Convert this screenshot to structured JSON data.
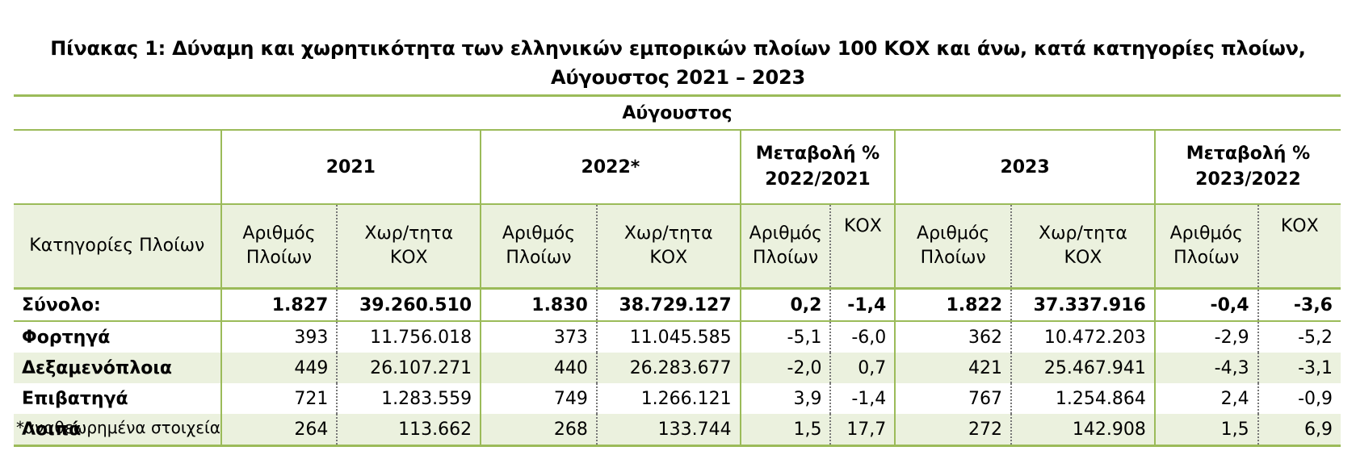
{
  "title_line1": "Πίνακας 1: Δύναμη και χωρητικότητα των ελληνικών εμπορικών πλοίων 100 ΚΟΧ και άνω, κατά κατηγορίες πλοίων,",
  "title_line2": "Αύγουστος 2021 – 2023",
  "month_header": "Αύγουστος",
  "years": {
    "y2021": "2021",
    "y2022": "2022*",
    "change_2022": "Μεταβολή % 2022/2021",
    "y2023": "2023",
    "change_2023": "Μεταβολή % 2023/2022"
  },
  "subheaders": {
    "category": "Κατηγορίες Πλοίων",
    "count": "Αριθμός Πλοίων",
    "capacity": "Χωρ/τητα ΚΟΧ",
    "kox": "ΚΟΧ"
  },
  "rows": [
    {
      "name": "Σύνολο:",
      "c2021": "1.827",
      "k2021": "39.260.510",
      "c2022": "1.830",
      "k2022": "38.729.127",
      "pc1": "0,2",
      "pk1": "-1,4",
      "c2023": "1.822",
      "k2023": "37.337.916",
      "pc2": "-0,4",
      "pk2": "-3,6"
    },
    {
      "name": "Φορτηγά",
      "c2021": "393",
      "k2021": "11.756.018",
      "c2022": "373",
      "k2022": "11.045.585",
      "pc1": "-5,1",
      "pk1": "-6,0",
      "c2023": "362",
      "k2023": "10.472.203",
      "pc2": "-2,9",
      "pk2": "-5,2"
    },
    {
      "name": "Δεξαμενόπλοια",
      "c2021": "449",
      "k2021": "26.107.271",
      "c2022": "440",
      "k2022": "26.283.677",
      "pc1": "-2,0",
      "pk1": "0,7",
      "c2023": "421",
      "k2023": "25.467.941",
      "pc2": "-4,3",
      "pk2": "-3,1"
    },
    {
      "name": "Επιβατηγά",
      "c2021": "721",
      "k2021": "1.283.559",
      "c2022": "749",
      "k2022": "1.266.121",
      "pc1": "3,9",
      "pk1": "-1,4",
      "c2023": "767",
      "k2023": "1.254.864",
      "pc2": "2,4",
      "pk2": "-0,9"
    },
    {
      "name": "Λοιπά",
      "c2021": "264",
      "k2021": "113.662",
      "c2022": "268",
      "k2022": "133.744",
      "pc1": "1,5",
      "pk1": "17,7",
      "c2023": "272",
      "k2023": "142.908",
      "pc2": "1,5",
      "pk2": "6,9"
    }
  ],
  "footnote": "*αναθεωρημένα στοιχεία",
  "colors": {
    "accent": "#9bbb59",
    "stripe": "#ebf1de"
  }
}
